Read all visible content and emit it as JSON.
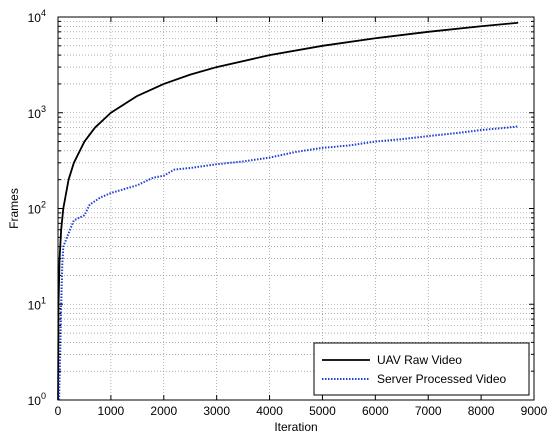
{
  "chart_data": {
    "type": "line",
    "xlabel": "Iteration",
    "ylabel": "Frames",
    "xlim": [
      0,
      9000
    ],
    "ylim": [
      1,
      10000
    ],
    "yscale": "log",
    "grid": true,
    "legend_position": "bottom-right",
    "x_ticks": [
      0,
      1000,
      2000,
      3000,
      4000,
      5000,
      6000,
      7000,
      8000,
      9000
    ],
    "y_ticks": [
      {
        "value": 1,
        "base": "10",
        "exp": "0"
      },
      {
        "value": 10,
        "base": "10",
        "exp": "1"
      },
      {
        "value": 100,
        "base": "10",
        "exp": "2"
      },
      {
        "value": 1000,
        "base": "10",
        "exp": "3"
      },
      {
        "value": 10000,
        "base": "10",
        "exp": "4"
      }
    ],
    "series": [
      {
        "name": "UAV Raw Video",
        "color": "#000000",
        "style": "solid",
        "points": [
          [
            1,
            1
          ],
          [
            10,
            10
          ],
          [
            30,
            30
          ],
          [
            60,
            60
          ],
          [
            100,
            100
          ],
          [
            200,
            200
          ],
          [
            300,
            300
          ],
          [
            500,
            500
          ],
          [
            700,
            700
          ],
          [
            1000,
            1000
          ],
          [
            1500,
            1500
          ],
          [
            2000,
            2000
          ],
          [
            2500,
            2500
          ],
          [
            3000,
            3000
          ],
          [
            4000,
            4000
          ],
          [
            5000,
            5000
          ],
          [
            6000,
            6000
          ],
          [
            7000,
            7000
          ],
          [
            8000,
            8000
          ],
          [
            8700,
            8700
          ]
        ]
      },
      {
        "name": "Server Processed Video",
        "color": "#1f3fd4",
        "style": "dotted",
        "points": [
          [
            20,
            1
          ],
          [
            40,
            3
          ],
          [
            60,
            10
          ],
          [
            80,
            25
          ],
          [
            100,
            40
          ],
          [
            200,
            55
          ],
          [
            300,
            75
          ],
          [
            400,
            80
          ],
          [
            500,
            85
          ],
          [
            600,
            110
          ],
          [
            800,
            130
          ],
          [
            1000,
            145
          ],
          [
            1500,
            175
          ],
          [
            1800,
            210
          ],
          [
            2000,
            220
          ],
          [
            2200,
            255
          ],
          [
            2500,
            265
          ],
          [
            3000,
            290
          ],
          [
            3500,
            310
          ],
          [
            4000,
            340
          ],
          [
            4500,
            390
          ],
          [
            5000,
            430
          ],
          [
            5500,
            455
          ],
          [
            6000,
            500
          ],
          [
            6500,
            530
          ],
          [
            7000,
            570
          ],
          [
            7500,
            610
          ],
          [
            8000,
            660
          ],
          [
            8500,
            700
          ],
          [
            8700,
            720
          ]
        ]
      }
    ]
  }
}
